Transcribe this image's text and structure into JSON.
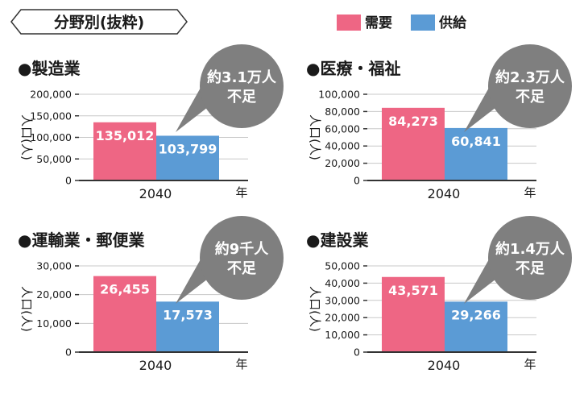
{
  "header": {
    "title": "分野別(抜粋)",
    "legend": [
      {
        "label": "需要",
        "color": "#ee6684"
      },
      {
        "label": "供給",
        "color": "#5b9bd5"
      }
    ]
  },
  "colors": {
    "demand": "#ee6684",
    "supply": "#5b9bd5",
    "callout": "#7f7f7f",
    "text": "#1a1a1a"
  },
  "chart_data": [
    {
      "type": "bar",
      "title": "●製造業",
      "categories": [
        "2040"
      ],
      "series": [
        {
          "name": "需要",
          "values": [
            135012
          ]
        },
        {
          "name": "供給",
          "values": [
            103799
          ]
        }
      ],
      "data_labels": [
        "135,012",
        "103,799"
      ],
      "ylabel": "人口(人)",
      "xunit": "年",
      "yticks": [
        0,
        50000,
        100000,
        150000,
        200000
      ],
      "ytick_labels": [
        "0",
        "50,000",
        "100,000",
        "150,000",
        "200,000"
      ],
      "ylim": [
        0,
        200000
      ],
      "callout": [
        "約3.1万人",
        "不足"
      ]
    },
    {
      "type": "bar",
      "title": "●医療・福祉",
      "categories": [
        "2040"
      ],
      "series": [
        {
          "name": "需要",
          "values": [
            84273
          ]
        },
        {
          "name": "供給",
          "values": [
            60841
          ]
        }
      ],
      "data_labels": [
        "84,273",
        "60,841"
      ],
      "ylabel": "人口(人)",
      "xunit": "年",
      "yticks": [
        0,
        20000,
        40000,
        60000,
        80000,
        100000
      ],
      "ytick_labels": [
        "0",
        "20,000",
        "40,000",
        "60,000",
        "80,000",
        "100,000"
      ],
      "ylim": [
        0,
        100000
      ],
      "callout": [
        "約2.3万人",
        "不足"
      ]
    },
    {
      "type": "bar",
      "title": "●運輸業・郵便業",
      "categories": [
        "2040"
      ],
      "series": [
        {
          "name": "需要",
          "values": [
            26455
          ]
        },
        {
          "name": "供給",
          "values": [
            17573
          ]
        }
      ],
      "data_labels": [
        "26,455",
        "17,573"
      ],
      "ylabel": "人口(人)",
      "xunit": "年",
      "yticks": [
        0,
        10000,
        20000,
        30000
      ],
      "ytick_labels": [
        "0",
        "10,000",
        "20,000",
        "30,000"
      ],
      "ylim": [
        0,
        30000
      ],
      "callout": [
        "約9千人",
        "不足"
      ]
    },
    {
      "type": "bar",
      "title": "●建設業",
      "categories": [
        "2040"
      ],
      "series": [
        {
          "name": "需要",
          "values": [
            43571
          ]
        },
        {
          "name": "供給",
          "values": [
            29266
          ]
        }
      ],
      "data_labels": [
        "43,571",
        "29,266"
      ],
      "ylabel": "人口(人)",
      "xunit": "年",
      "yticks": [
        0,
        10000,
        20000,
        30000,
        40000,
        50000
      ],
      "ytick_labels": [
        "0",
        "10,000",
        "20,000",
        "30,000",
        "40,000",
        "50,000"
      ],
      "ylim": [
        0,
        50000
      ],
      "callout": [
        "約1.4万人",
        "不足"
      ]
    }
  ]
}
